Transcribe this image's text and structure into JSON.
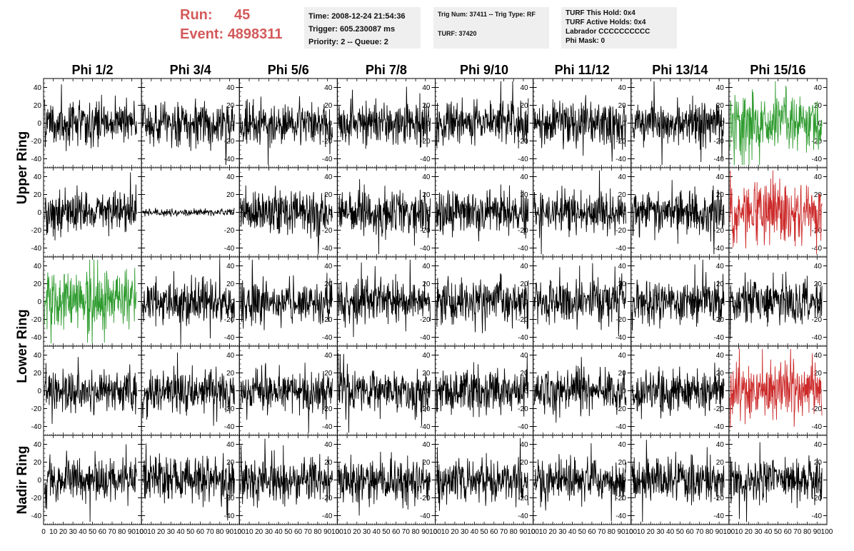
{
  "header": {
    "run_label": "Run:",
    "run_value": "45",
    "event_label": "Event:",
    "event_value": "4898311",
    "time": "Time: 2008-12-24 21:54:36",
    "trigger": "Trigger: 605.230087 ms",
    "priority": "Priority: 2 -- Queue: 2",
    "trig_num": "Trig Num: 37411 -- Trig Type: RF",
    "turf": "TURF: 37420",
    "turf_hold": "TURF This Hold: 0x4",
    "turf_active": "TURF Active Holds: 0x4",
    "labrador": "Labrador CCCCCCCCCC",
    "phi_mask": "Phi Mask: 0"
  },
  "colors": {
    "accent": "#d35a5a",
    "trace": "#000000",
    "green": "#2e9b2e",
    "red": "#cc2a2a",
    "panel": "#efefef"
  },
  "chart_data": {
    "type": "line",
    "columns": [
      "Phi 1/2",
      "Phi 3/4",
      "Phi 5/6",
      "Phi 7/8",
      "Phi 9/10",
      "Phi 11/12",
      "Phi 13/14",
      "Phi 15/16"
    ],
    "ring_labels": [
      "Upper Ring",
      "Lower Ring",
      "Nadir Ring"
    ],
    "rows": 5,
    "ylim": [
      -50,
      50
    ],
    "xlim": [
      0,
      100
    ],
    "yticks": [
      -40,
      -20,
      0,
      20,
      40
    ],
    "xticks": [
      0,
      10,
      20,
      30,
      40,
      50,
      60,
      70,
      80,
      90,
      100
    ],
    "xtick_labels": [
      "0",
      "10",
      "20",
      "30",
      "40",
      "50",
      "60",
      "70",
      "80",
      "90",
      "100"
    ],
    "highlighted": [
      {
        "row": 0,
        "col": 7,
        "color": "green"
      },
      {
        "row": 1,
        "col": 7,
        "color": "red"
      },
      {
        "row": 2,
        "col": 0,
        "color": "green"
      },
      {
        "row": 3,
        "col": 7,
        "color": "red"
      }
    ],
    "low_amplitude": [
      {
        "row": 1,
        "col": 1
      }
    ],
    "trace_samples": 256,
    "trace_amplitude": 12
  }
}
